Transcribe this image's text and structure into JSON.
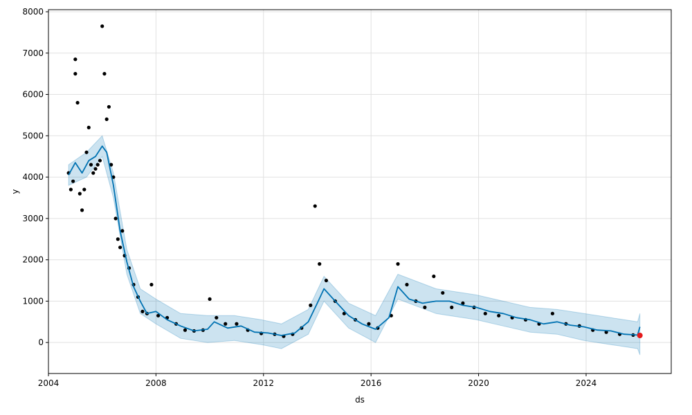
{
  "chart_data": {
    "type": "scatter",
    "title": "",
    "xlabel": "ds",
    "ylabel": "y",
    "x_type": "date",
    "xlim": [
      "2004-01-01",
      "2027-03-01"
    ],
    "ylim": [
      -750,
      8050
    ],
    "x_ticks": [
      "2004",
      "2008",
      "2012",
      "2016",
      "2020",
      "2024"
    ],
    "y_ticks": [
      0,
      1000,
      2000,
      3000,
      4000,
      5000,
      6000,
      7000,
      8000
    ],
    "grid": true,
    "legend": "none",
    "series": [
      {
        "kind": "observed_points",
        "color": "#000000",
        "points": [
          [
            "2004-10",
            4100
          ],
          [
            "2004-11",
            3700
          ],
          [
            "2004-12",
            3900
          ],
          [
            "2005-01",
            6500
          ],
          [
            "2005-01",
            6850
          ],
          [
            "2005-02",
            5800
          ],
          [
            "2005-03",
            3600
          ],
          [
            "2005-04",
            3200
          ],
          [
            "2005-05",
            3700
          ],
          [
            "2005-06",
            4600
          ],
          [
            "2005-07",
            5200
          ],
          [
            "2005-08",
            4300
          ],
          [
            "2005-09",
            4100
          ],
          [
            "2005-10",
            4200
          ],
          [
            "2005-11",
            4300
          ],
          [
            "2005-12",
            4400
          ],
          [
            "2006-01",
            7650
          ],
          [
            "2006-02",
            6500
          ],
          [
            "2006-03",
            5400
          ],
          [
            "2006-04",
            5700
          ],
          [
            "2006-05",
            4300
          ],
          [
            "2006-06",
            4000
          ],
          [
            "2006-07",
            3000
          ],
          [
            "2006-08",
            2500
          ],
          [
            "2006-09",
            2300
          ],
          [
            "2006-10",
            2700
          ],
          [
            "2006-11",
            2100
          ],
          [
            "2007-01",
            1800
          ],
          [
            "2007-03",
            1400
          ],
          [
            "2007-05",
            1100
          ],
          [
            "2007-07",
            750
          ],
          [
            "2007-09",
            700
          ],
          [
            "2007-11",
            1400
          ],
          [
            "2008-02",
            650
          ],
          [
            "2008-06",
            600
          ],
          [
            "2008-10",
            450
          ],
          [
            "2009-02",
            300
          ],
          [
            "2009-06",
            280
          ],
          [
            "2009-10",
            300
          ],
          [
            "2010-01",
            1050
          ],
          [
            "2010-04",
            600
          ],
          [
            "2010-08",
            450
          ],
          [
            "2011-01",
            450
          ],
          [
            "2011-06",
            300
          ],
          [
            "2011-12",
            220
          ],
          [
            "2012-06",
            200
          ],
          [
            "2012-10",
            150
          ],
          [
            "2013-02",
            200
          ],
          [
            "2013-06",
            350
          ],
          [
            "2013-10",
            900
          ],
          [
            "2013-12",
            3300
          ],
          [
            "2014-02",
            1900
          ],
          [
            "2014-05",
            1500
          ],
          [
            "2014-09",
            1000
          ],
          [
            "2015-01",
            700
          ],
          [
            "2015-06",
            550
          ],
          [
            "2015-12",
            450
          ],
          [
            "2016-04",
            350
          ],
          [
            "2016-10",
            650
          ],
          [
            "2017-01",
            1900
          ],
          [
            "2017-05",
            1400
          ],
          [
            "2017-09",
            1000
          ],
          [
            "2018-01",
            850
          ],
          [
            "2018-05",
            1600
          ],
          [
            "2018-09",
            1200
          ],
          [
            "2019-01",
            850
          ],
          [
            "2019-06",
            950
          ],
          [
            "2019-11",
            850
          ],
          [
            "2020-04",
            700
          ],
          [
            "2020-10",
            650
          ],
          [
            "2021-04",
            600
          ],
          [
            "2021-10",
            550
          ],
          [
            "2022-04",
            450
          ],
          [
            "2022-10",
            700
          ],
          [
            "2023-04",
            450
          ],
          [
            "2023-10",
            400
          ],
          [
            "2024-04",
            300
          ],
          [
            "2024-10",
            250
          ],
          [
            "2025-04",
            200
          ],
          [
            "2025-10",
            180
          ]
        ]
      },
      {
        "kind": "forecast_line",
        "color": "#0072B2",
        "points": [
          [
            "2004-10",
            4050
          ],
          [
            "2005-01",
            4350
          ],
          [
            "2005-04",
            4100
          ],
          [
            "2005-07",
            4400
          ],
          [
            "2005-10",
            4500
          ],
          [
            "2006-01",
            4750
          ],
          [
            "2006-03",
            4600
          ],
          [
            "2006-06",
            3800
          ],
          [
            "2006-09",
            2700
          ],
          [
            "2006-12",
            1950
          ],
          [
            "2007-03",
            1350
          ],
          [
            "2007-06",
            1000
          ],
          [
            "2007-09",
            700
          ],
          [
            "2008-01",
            750
          ],
          [
            "2008-06",
            550
          ],
          [
            "2008-12",
            400
          ],
          [
            "2009-06",
            280
          ],
          [
            "2009-12",
            320
          ],
          [
            "2010-03",
            500
          ],
          [
            "2010-09",
            350
          ],
          [
            "2011-03",
            400
          ],
          [
            "2011-09",
            250
          ],
          [
            "2012-03",
            230
          ],
          [
            "2012-09",
            170
          ],
          [
            "2013-03",
            230
          ],
          [
            "2013-09",
            500
          ],
          [
            "2014-01",
            950
          ],
          [
            "2014-04",
            1300
          ],
          [
            "2014-09",
            1000
          ],
          [
            "2015-03",
            650
          ],
          [
            "2015-09",
            450
          ],
          [
            "2016-03",
            320
          ],
          [
            "2016-09",
            600
          ],
          [
            "2017-01",
            1350
          ],
          [
            "2017-06",
            1050
          ],
          [
            "2017-12",
            950
          ],
          [
            "2018-06",
            1000
          ],
          [
            "2018-12",
            1000
          ],
          [
            "2019-06",
            900
          ],
          [
            "2019-12",
            850
          ],
          [
            "2020-06",
            750
          ],
          [
            "2020-12",
            700
          ],
          [
            "2021-06",
            600
          ],
          [
            "2021-12",
            550
          ],
          [
            "2022-06",
            450
          ],
          [
            "2022-12",
            500
          ],
          [
            "2023-06",
            420
          ],
          [
            "2023-12",
            380
          ],
          [
            "2024-06",
            300
          ],
          [
            "2024-12",
            280
          ],
          [
            "2025-06",
            200
          ],
          [
            "2025-12",
            180
          ],
          [
            "2026-01",
            380
          ]
        ]
      },
      {
        "kind": "uncertainty_band",
        "color": "#0072B2",
        "upper": [
          [
            "2004-10",
            4300
          ],
          [
            "2005-06",
            4600
          ],
          [
            "2006-01",
            5000
          ],
          [
            "2006-06",
            4100
          ],
          [
            "2006-12",
            2250
          ],
          [
            "2007-06",
            1300
          ],
          [
            "2008-01",
            1050
          ],
          [
            "2008-12",
            700
          ],
          [
            "2009-12",
            650
          ],
          [
            "2010-12",
            650
          ],
          [
            "2011-12",
            550
          ],
          [
            "2012-09",
            450
          ],
          [
            "2013-09",
            800
          ],
          [
            "2014-04",
            1600
          ],
          [
            "2015-03",
            950
          ],
          [
            "2016-03",
            650
          ],
          [
            "2017-01",
            1650
          ],
          [
            "2018-06",
            1300
          ],
          [
            "2019-12",
            1150
          ],
          [
            "2020-12",
            1000
          ],
          [
            "2021-12",
            850
          ],
          [
            "2022-12",
            800
          ],
          [
            "2023-12",
            700
          ],
          [
            "2024-12",
            600
          ],
          [
            "2025-12",
            500
          ],
          [
            "2026-01",
            700
          ]
        ],
        "lower": [
          [
            "2004-10",
            3800
          ],
          [
            "2005-06",
            4000
          ],
          [
            "2006-01",
            4500
          ],
          [
            "2006-06",
            3500
          ],
          [
            "2006-12",
            1650
          ],
          [
            "2007-06",
            700
          ],
          [
            "2008-01",
            450
          ],
          [
            "2008-12",
            100
          ],
          [
            "2009-12",
            0
          ],
          [
            "2010-12",
            50
          ],
          [
            "2011-12",
            -50
          ],
          [
            "2012-09",
            -150
          ],
          [
            "2013-09",
            200
          ],
          [
            "2014-04",
            1000
          ],
          [
            "2015-03",
            350
          ],
          [
            "2016-03",
            0
          ],
          [
            "2017-01",
            1050
          ],
          [
            "2018-06",
            700
          ],
          [
            "2019-12",
            550
          ],
          [
            "2020-12",
            400
          ],
          [
            "2021-12",
            250
          ],
          [
            "2022-12",
            200
          ],
          [
            "2023-12",
            50
          ],
          [
            "2024-12",
            -50
          ],
          [
            "2025-12",
            -150
          ],
          [
            "2026-01",
            -300
          ]
        ]
      },
      {
        "kind": "highlight_point",
        "color": "#e41a1c",
        "points": [
          [
            "2026-01",
            170
          ]
        ]
      }
    ]
  }
}
